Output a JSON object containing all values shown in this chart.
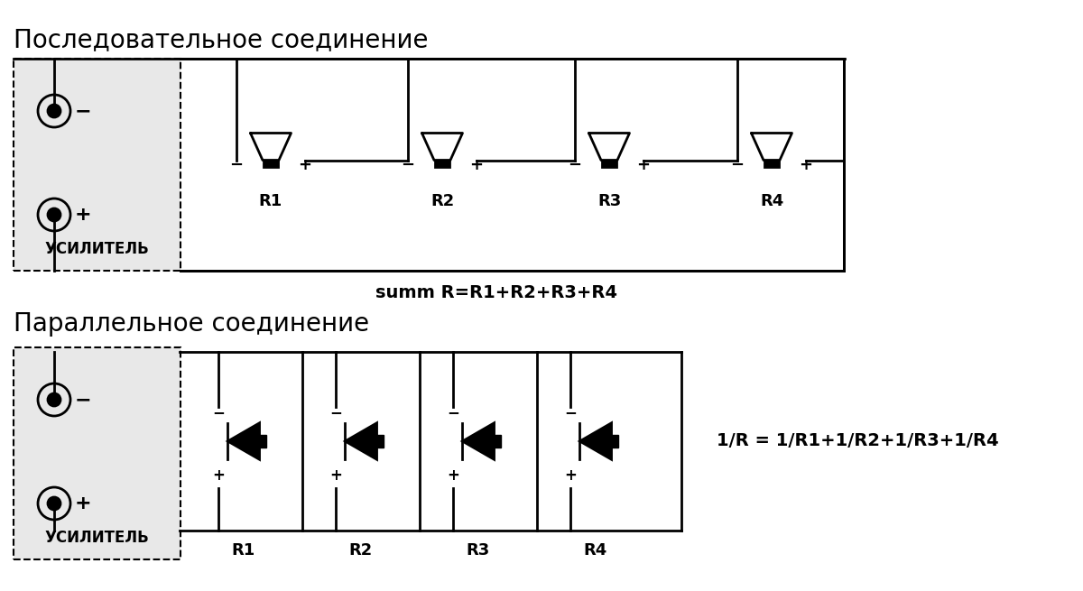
{
  "title_serial": "Последовательное соединение",
  "title_parallel": "Параллельное соединение",
  "formula_serial": "summ R=R1+R2+R3+R4",
  "formula_parallel": "1/R = 1/R1+1/R2+1/R3+1/R4",
  "amplifier_label": "УСИЛИТЕЛЬ",
  "speaker_labels": [
    "R1",
    "R2",
    "R3",
    "R4"
  ],
  "bg_color": "#ffffff",
  "box_color": "#e8e8e8",
  "line_color": "#000000",
  "text_color": "#000000",
  "font_size_title": 20,
  "font_size_label": 13,
  "font_size_formula": 14,
  "font_size_amp": 12
}
